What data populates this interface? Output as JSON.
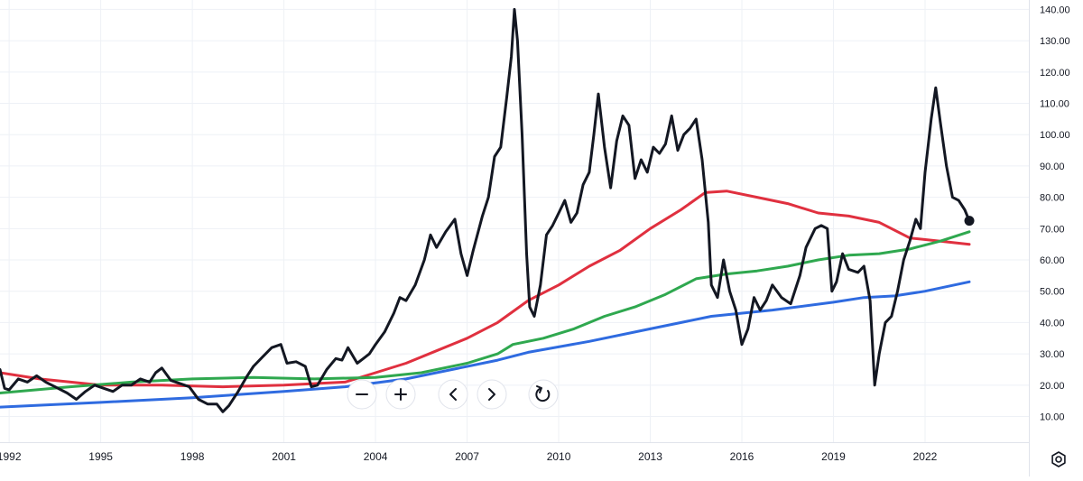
{
  "chart_data": {
    "type": "line",
    "x_axis": {
      "tick_labels": [
        "1992",
        "1995",
        "1998",
        "2001",
        "2004",
        "2007",
        "2010",
        "2013",
        "2016",
        "2019",
        "2022"
      ],
      "range": [
        1991.7,
        2025.4
      ]
    },
    "y_axis": {
      "tick_values": [
        10,
        20,
        30,
        40,
        50,
        60,
        70,
        80,
        90,
        100,
        110,
        120,
        130,
        140
      ],
      "tick_labels": [
        "10.00",
        "20.00",
        "30.00",
        "40.00",
        "50.00",
        "60.00",
        "70.00",
        "80.00",
        "90.00",
        "100.00",
        "110.00",
        "120.00",
        "130.00",
        "140.00"
      ],
      "range": [
        1.8,
        143.0
      ],
      "position": "right"
    },
    "grid": true,
    "series": [
      {
        "color": "#131722",
        "style": "price",
        "points": [
          [
            1991.7,
            25.0
          ],
          [
            1991.85,
            19.0
          ],
          [
            1992.0,
            18.5
          ],
          [
            1992.3,
            22.0
          ],
          [
            1992.6,
            21.0
          ],
          [
            1992.9,
            23.0
          ],
          [
            1993.2,
            21.0
          ],
          [
            1993.5,
            19.5
          ],
          [
            1993.9,
            17.5
          ],
          [
            1994.2,
            15.5
          ],
          [
            1994.5,
            18.0
          ],
          [
            1994.8,
            20.0
          ],
          [
            1995.1,
            19.0
          ],
          [
            1995.4,
            18.0
          ],
          [
            1995.7,
            20.0
          ],
          [
            1996.0,
            20.0
          ],
          [
            1996.3,
            22.0
          ],
          [
            1996.6,
            21.0
          ],
          [
            1996.8,
            24.0
          ],
          [
            1997.0,
            25.5
          ],
          [
            1997.3,
            21.5
          ],
          [
            1997.6,
            20.5
          ],
          [
            1997.9,
            19.5
          ],
          [
            1998.2,
            15.5
          ],
          [
            1998.5,
            14.0
          ],
          [
            1998.8,
            14.0
          ],
          [
            1999.0,
            11.5
          ],
          [
            1999.2,
            13.5
          ],
          [
            1999.5,
            18.0
          ],
          [
            1999.8,
            23.0
          ],
          [
            2000.0,
            26.0
          ],
          [
            2000.3,
            29.0
          ],
          [
            2000.6,
            32.0
          ],
          [
            2000.9,
            33.0
          ],
          [
            2001.1,
            27.0
          ],
          [
            2001.4,
            27.5
          ],
          [
            2001.7,
            26.0
          ],
          [
            2001.9,
            19.5
          ],
          [
            2002.1,
            20.0
          ],
          [
            2002.4,
            25.0
          ],
          [
            2002.7,
            28.5
          ],
          [
            2002.9,
            28.0
          ],
          [
            2003.1,
            32.0
          ],
          [
            2003.4,
            27.0
          ],
          [
            2003.6,
            28.5
          ],
          [
            2003.8,
            30.0
          ],
          [
            2004.0,
            33.0
          ],
          [
            2004.3,
            37.0
          ],
          [
            2004.6,
            43.0
          ],
          [
            2004.8,
            48.0
          ],
          [
            2005.0,
            47.0
          ],
          [
            2005.3,
            52.0
          ],
          [
            2005.6,
            60.0
          ],
          [
            2005.8,
            68.0
          ],
          [
            2006.0,
            64.0
          ],
          [
            2006.3,
            69.0
          ],
          [
            2006.6,
            73.0
          ],
          [
            2006.8,
            62.0
          ],
          [
            2007.0,
            55.0
          ],
          [
            2007.2,
            63.0
          ],
          [
            2007.5,
            74.0
          ],
          [
            2007.7,
            80.0
          ],
          [
            2007.9,
            93.0
          ],
          [
            2008.1,
            96.0
          ],
          [
            2008.3,
            112.0
          ],
          [
            2008.45,
            125.0
          ],
          [
            2008.55,
            140.0
          ],
          [
            2008.65,
            130.0
          ],
          [
            2008.8,
            100.0
          ],
          [
            2008.95,
            62.0
          ],
          [
            2009.05,
            45.0
          ],
          [
            2009.2,
            42.0
          ],
          [
            2009.4,
            52.0
          ],
          [
            2009.6,
            68.0
          ],
          [
            2009.8,
            71.0
          ],
          [
            2010.0,
            75.0
          ],
          [
            2010.2,
            79.0
          ],
          [
            2010.4,
            72.0
          ],
          [
            2010.6,
            75.0
          ],
          [
            2010.8,
            84.0
          ],
          [
            2011.0,
            88.0
          ],
          [
            2011.15,
            100.0
          ],
          [
            2011.3,
            113.0
          ],
          [
            2011.5,
            96.0
          ],
          [
            2011.7,
            83.0
          ],
          [
            2011.9,
            98.0
          ],
          [
            2012.1,
            106.0
          ],
          [
            2012.3,
            103.0
          ],
          [
            2012.5,
            86.0
          ],
          [
            2012.7,
            92.0
          ],
          [
            2012.9,
            88.0
          ],
          [
            2013.1,
            96.0
          ],
          [
            2013.3,
            94.0
          ],
          [
            2013.5,
            97.0
          ],
          [
            2013.7,
            106.0
          ],
          [
            2013.9,
            95.0
          ],
          [
            2014.1,
            100.0
          ],
          [
            2014.3,
            102.0
          ],
          [
            2014.5,
            105.0
          ],
          [
            2014.7,
            92.0
          ],
          [
            2014.9,
            72.0
          ],
          [
            2015.0,
            52.0
          ],
          [
            2015.2,
            48.0
          ],
          [
            2015.4,
            60.0
          ],
          [
            2015.6,
            50.0
          ],
          [
            2015.8,
            44.0
          ],
          [
            2016.0,
            33.0
          ],
          [
            2016.2,
            38.0
          ],
          [
            2016.4,
            48.0
          ],
          [
            2016.6,
            44.0
          ],
          [
            2016.8,
            47.0
          ],
          [
            2017.0,
            52.0
          ],
          [
            2017.3,
            48.0
          ],
          [
            2017.6,
            46.0
          ],
          [
            2017.9,
            55.0
          ],
          [
            2018.1,
            64.0
          ],
          [
            2018.4,
            70.0
          ],
          [
            2018.6,
            71.0
          ],
          [
            2018.8,
            70.0
          ],
          [
            2018.95,
            50.0
          ],
          [
            2019.1,
            53.0
          ],
          [
            2019.3,
            62.0
          ],
          [
            2019.5,
            57.0
          ],
          [
            2019.8,
            56.0
          ],
          [
            2020.0,
            58.0
          ],
          [
            2020.2,
            47.0
          ],
          [
            2020.35,
            20.0
          ],
          [
            2020.5,
            30.0
          ],
          [
            2020.7,
            40.0
          ],
          [
            2020.9,
            42.0
          ],
          [
            2021.1,
            50.0
          ],
          [
            2021.3,
            60.0
          ],
          [
            2021.5,
            66.0
          ],
          [
            2021.7,
            73.0
          ],
          [
            2021.85,
            70.0
          ],
          [
            2022.0,
            88.0
          ],
          [
            2022.2,
            105.0
          ],
          [
            2022.35,
            115.0
          ],
          [
            2022.5,
            104.0
          ],
          [
            2022.7,
            90.0
          ],
          [
            2022.9,
            80.0
          ],
          [
            2023.1,
            79.0
          ],
          [
            2023.3,
            76.0
          ],
          [
            2023.45,
            72.5
          ]
        ]
      },
      {
        "color": "#e0303f",
        "style": "moving-average",
        "points": [
          [
            1991.7,
            24.0
          ],
          [
            1993.0,
            22.0
          ],
          [
            1995.0,
            20.0
          ],
          [
            1997.0,
            20.0
          ],
          [
            1999.0,
            19.5
          ],
          [
            2001.0,
            20.0
          ],
          [
            2003.0,
            21.0
          ],
          [
            2004.0,
            24.0
          ],
          [
            2005.0,
            27.0
          ],
          [
            2006.0,
            31.0
          ],
          [
            2007.0,
            35.0
          ],
          [
            2008.0,
            40.0
          ],
          [
            2009.0,
            47.0
          ],
          [
            2010.0,
            52.0
          ],
          [
            2011.0,
            58.0
          ],
          [
            2012.0,
            63.0
          ],
          [
            2013.0,
            70.0
          ],
          [
            2014.0,
            76.0
          ],
          [
            2014.8,
            81.5
          ],
          [
            2015.5,
            82.0
          ],
          [
            2016.5,
            80.0
          ],
          [
            2017.5,
            78.0
          ],
          [
            2018.5,
            75.0
          ],
          [
            2019.5,
            74.0
          ],
          [
            2020.5,
            72.0
          ],
          [
            2021.5,
            67.0
          ],
          [
            2022.5,
            66.0
          ],
          [
            2023.45,
            65.0
          ]
        ]
      },
      {
        "color": "#2fa84f",
        "style": "moving-average",
        "points": [
          [
            1991.7,
            17.5
          ],
          [
            1994.0,
            19.5
          ],
          [
            1996.0,
            21.0
          ],
          [
            1998.0,
            22.0
          ],
          [
            2000.0,
            22.5
          ],
          [
            2002.0,
            22.0
          ],
          [
            2004.0,
            22.5
          ],
          [
            2005.5,
            24.0
          ],
          [
            2007.0,
            27.0
          ],
          [
            2008.0,
            30.0
          ],
          [
            2008.5,
            33.0
          ],
          [
            2009.5,
            35.0
          ],
          [
            2010.5,
            38.0
          ],
          [
            2011.5,
            42.0
          ],
          [
            2012.5,
            45.0
          ],
          [
            2013.5,
            49.0
          ],
          [
            2014.5,
            54.0
          ],
          [
            2015.5,
            55.5
          ],
          [
            2016.5,
            56.5
          ],
          [
            2017.5,
            58.0
          ],
          [
            2018.5,
            60.0
          ],
          [
            2019.5,
            61.5
          ],
          [
            2020.5,
            62.0
          ],
          [
            2021.5,
            63.5
          ],
          [
            2022.5,
            66.0
          ],
          [
            2023.45,
            69.0
          ]
        ]
      },
      {
        "color": "#2f6be0",
        "style": "moving-average",
        "points": [
          [
            1991.7,
            13.0
          ],
          [
            1995.0,
            14.5
          ],
          [
            1998.0,
            16.0
          ],
          [
            2001.0,
            18.0
          ],
          [
            2003.0,
            19.5
          ],
          [
            2005.0,
            22.0
          ],
          [
            2006.5,
            25.0
          ],
          [
            2008.0,
            28.0
          ],
          [
            2009.0,
            30.5
          ],
          [
            2011.0,
            34.0
          ],
          [
            2013.0,
            38.0
          ],
          [
            2015.0,
            42.0
          ],
          [
            2017.0,
            44.0
          ],
          [
            2019.0,
            46.5
          ],
          [
            2020.0,
            48.0
          ],
          [
            2021.0,
            48.5
          ],
          [
            2022.0,
            50.0
          ],
          [
            2023.45,
            53.0
          ]
        ]
      }
    ]
  },
  "controls": {
    "zoom_out_icon": "minus-icon",
    "zoom_in_icon": "plus-icon",
    "scroll_left_icon": "chevron-left-icon",
    "scroll_right_icon": "chevron-right-icon",
    "reset_icon": "reset-icon",
    "settings_icon": "gear-icon"
  },
  "colors": {
    "background": "#ffffff",
    "grid": "#eef1f6",
    "axis_text": "#131722",
    "axis_border": "#e0e3eb"
  }
}
